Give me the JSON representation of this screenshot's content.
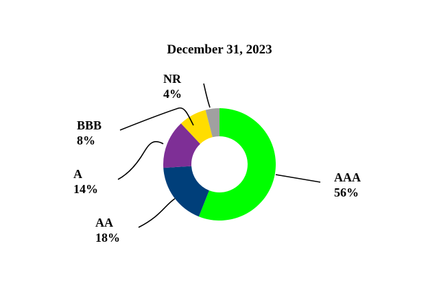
{
  "chart_data": {
    "type": "pie",
    "donut": true,
    "title": "December 31, 2023",
    "categories": [
      "AAA",
      "AA",
      "A",
      "BBB",
      "NR"
    ],
    "values": [
      56,
      18,
      14,
      8,
      4
    ],
    "value_labels": [
      "56%",
      "18%",
      "14%",
      "8%",
      "4%"
    ],
    "colors": [
      "#00ff00",
      "#003f7a",
      "#7e2f96",
      "#ffdd00",
      "#a0a0a0"
    ],
    "start": "top",
    "direction": "clockwise",
    "legend": "none"
  }
}
